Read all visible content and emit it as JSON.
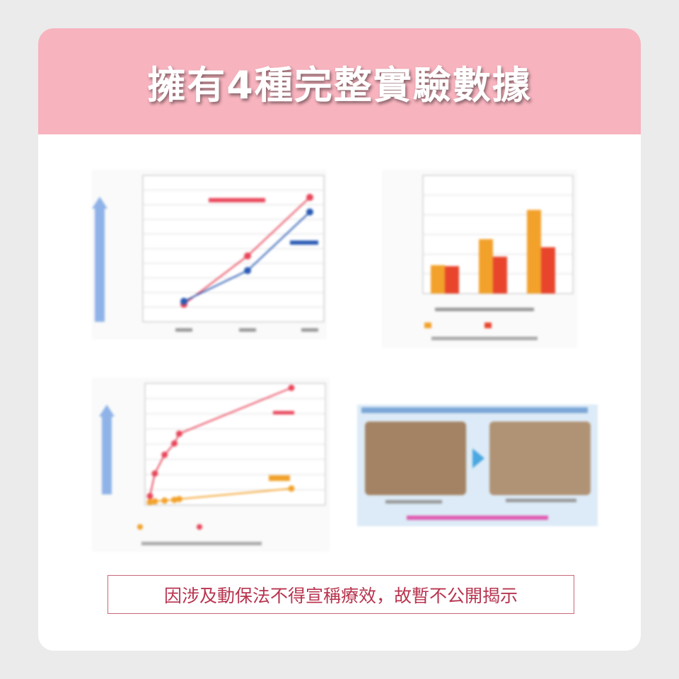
{
  "header": {
    "title": "擁有4種完整實驗數據"
  },
  "notice": {
    "text": "因涉及動保法不得宣稱療效，故暫不公開揭示"
  },
  "colors": {
    "header_bg": "#f7b3be",
    "notice": "#b8344f",
    "series_red": "#e8475a",
    "series_blue": "#2a5bb5",
    "series_orange": "#f2a12a",
    "series_darkred": "#e8452c"
  },
  "figures": [
    {
      "type": "line",
      "blurred": true,
      "series": [
        {
          "color": "#e8475a",
          "values": [
            9.2,
            12.5,
            16.5
          ]
        },
        {
          "color": "#2a5bb5",
          "values": [
            9.4,
            11.5,
            15.5
          ]
        }
      ],
      "ylim": [
        8,
        18
      ]
    },
    {
      "type": "bar",
      "blurred": true,
      "series": [
        {
          "color": "#f2a12a",
          "values": [
            600,
            1150,
            1770
          ]
        },
        {
          "color": "#e8452c",
          "values": [
            580,
            780,
            980
          ]
        }
      ],
      "ylim": [
        0,
        2500
      ]
    },
    {
      "type": "line",
      "blurred": true,
      "series": [
        {
          "color": "#e8475a",
          "x": [
            1,
            2,
            4,
            6,
            7,
            30
          ],
          "values": [
            1,
            4,
            6.5,
            8,
            9.3,
            15.4
          ]
        },
        {
          "color": "#f2a12a",
          "x": [
            1,
            2,
            4,
            6,
            7,
            30
          ],
          "values": [
            0.2,
            0.3,
            0.4,
            0.5,
            0.6,
            2
          ]
        }
      ],
      "ylim": [
        0,
        16
      ]
    },
    {
      "type": "photo-comparison",
      "blurred": true,
      "arrow": "right-arrow-icon"
    }
  ]
}
